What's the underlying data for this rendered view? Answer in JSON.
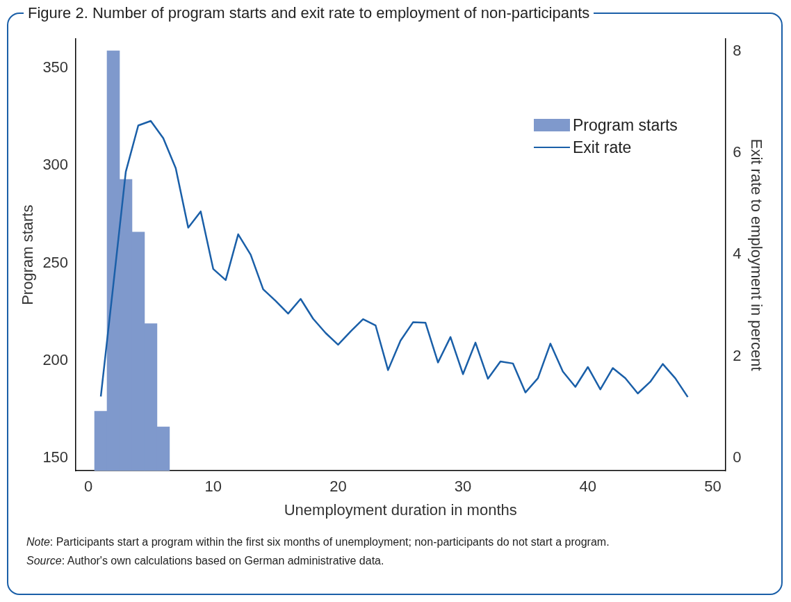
{
  "chart_data": {
    "type": "histogram",
    "title": "Figure 2. Number of program starts and exit rate to employment of non-participants",
    "xlabel": "Unemployment duration in months",
    "ylabel": "Program starts",
    "y2label": "Exit rate to employment in percent",
    "series": [
      {
        "name": "Program starts",
        "color": "#7f99cc",
        "bins": [
          0.5,
          1.5,
          2.5,
          3.5,
          4.5,
          5.5,
          6.5
        ],
        "values": [
          174,
          359,
          293,
          266,
          219,
          166
        ]
      },
      {
        "name": "Exit rate",
        "type": "line",
        "axis": "y2",
        "color": "#1a5fa8",
        "x": [
          1,
          2,
          3,
          4,
          5,
          6,
          7,
          8,
          9,
          10,
          11,
          12,
          13,
          14,
          15,
          16,
          17,
          18,
          19,
          20,
          21,
          22,
          23,
          24,
          25,
          26,
          27,
          28,
          29,
          30,
          31,
          32,
          33,
          34,
          35,
          36,
          37,
          38,
          39,
          40,
          41,
          42,
          43,
          44,
          45,
          46,
          47,
          48
        ],
        "values": [
          1.21,
          3.4,
          5.63,
          6.54,
          6.63,
          6.29,
          5.7,
          4.53,
          4.85,
          3.72,
          3.5,
          4.4,
          4.0,
          3.32,
          3.09,
          2.84,
          3.13,
          2.74,
          2.46,
          2.23,
          2.49,
          2.73,
          2.61,
          1.73,
          2.31,
          2.67,
          2.66,
          1.88,
          2.38,
          1.65,
          2.27,
          1.56,
          1.9,
          1.86,
          1.29,
          1.57,
          2.25,
          1.7,
          1.4,
          1.79,
          1.35,
          1.77,
          1.57,
          1.27,
          1.5,
          1.85,
          1.57,
          1.2
        ]
      }
    ],
    "xlim": [
      -1,
      51
    ],
    "xticks": [
      0,
      10,
      20,
      30,
      40,
      50
    ],
    "ylim": [
      143.5,
      365
    ],
    "yticks": [
      150,
      200,
      250,
      300,
      350
    ],
    "y2lim": [
      -0.25,
      8.24
    ],
    "y2ticks": [
      0,
      2,
      4,
      6,
      8
    ],
    "grid": false,
    "legend": "top right",
    "marker": "none",
    "line_style": "solid",
    "annotations": [
      "Note: Participants start a program within the first six months of unemployment; non-participants do not start a program.",
      "Source: Author's own calculations based on German administrative data."
    ]
  }
}
